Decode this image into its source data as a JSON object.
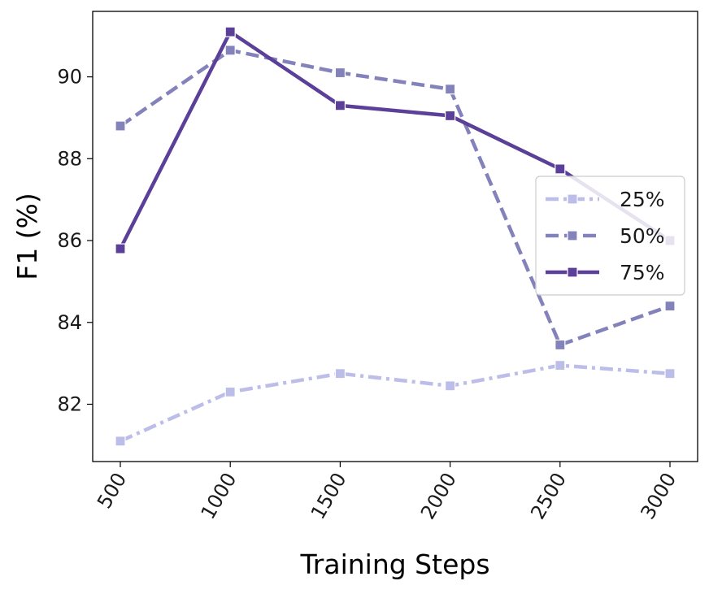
{
  "chart_data": {
    "type": "line",
    "title": "",
    "xlabel": "Training Steps",
    "ylabel": "F1 (%)",
    "x": [
      500,
      1000,
      1500,
      2000,
      2500,
      3000
    ],
    "x_tick_labels": [
      "500",
      "1000",
      "1500",
      "2000",
      "2500",
      "3000"
    ],
    "y_ticks": [
      82,
      84,
      86,
      88,
      90
    ],
    "y_tick_labels": [
      "82",
      "84",
      "86",
      "88",
      "90"
    ],
    "ylim": [
      80.6,
      91.6
    ],
    "grid": false,
    "legend_position": "center-right",
    "series": [
      {
        "name": "25%",
        "values": [
          81.1,
          82.3,
          82.75,
          82.45,
          82.95,
          82.75
        ],
        "color": "#bcbde8",
        "style": "dashdot",
        "marker": "square"
      },
      {
        "name": "50%",
        "values": [
          88.8,
          90.65,
          90.1,
          89.7,
          83.45,
          84.4
        ],
        "color": "#8382bb",
        "style": "dashed",
        "marker": "square"
      },
      {
        "name": "75%",
        "values": [
          85.8,
          91.1,
          89.3,
          89.05,
          87.75,
          86.0
        ],
        "color": "#5b3f98",
        "style": "solid",
        "marker": "square"
      }
    ]
  }
}
